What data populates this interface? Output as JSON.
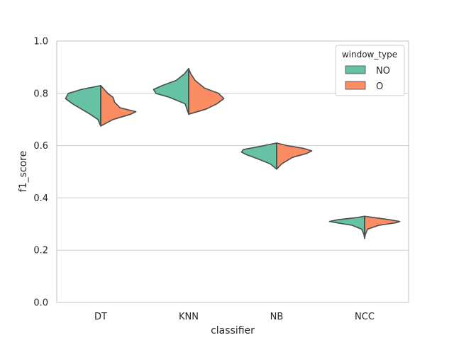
{
  "chart_data": {
    "type": "violin",
    "split": true,
    "xlabel": "classifier",
    "ylabel": "f1_score",
    "ylim": [
      0.0,
      1.0
    ],
    "yticks": [
      "0.0",
      "0.2",
      "0.4",
      "0.6",
      "0.8",
      "1.0"
    ],
    "categories": [
      "DT",
      "KNN",
      "NB",
      "NCC"
    ],
    "grid": "horizontal",
    "legend": {
      "title": "window_type",
      "position": "top-right"
    },
    "series": [
      {
        "name": "NO",
        "color": "#66c2a5",
        "violins": [
          {
            "category": "DT",
            "min": 0.675,
            "max": 0.83,
            "profile": [
              [
                0.675,
                0.0
              ],
              [
                0.7,
                0.08
              ],
              [
                0.72,
                0.3
              ],
              [
                0.74,
                0.55
              ],
              [
                0.76,
                0.8
              ],
              [
                0.78,
                1.0
              ],
              [
                0.8,
                0.92
              ],
              [
                0.815,
                0.55
              ],
              [
                0.83,
                0.0
              ]
            ]
          },
          {
            "category": "KNN",
            "min": 0.72,
            "max": 0.895,
            "profile": [
              [
                0.72,
                0.0
              ],
              [
                0.76,
                0.1
              ],
              [
                0.785,
                0.55
              ],
              [
                0.8,
                0.93
              ],
              [
                0.815,
                1.0
              ],
              [
                0.83,
                0.75
              ],
              [
                0.85,
                0.35
              ],
              [
                0.875,
                0.12
              ],
              [
                0.895,
                0.0
              ]
            ]
          },
          {
            "category": "NB",
            "min": 0.51,
            "max": 0.61,
            "profile": [
              [
                0.51,
                0.0
              ],
              [
                0.53,
                0.18
              ],
              [
                0.55,
                0.55
              ],
              [
                0.565,
                0.85
              ],
              [
                0.575,
                1.0
              ],
              [
                0.585,
                0.95
              ],
              [
                0.595,
                0.55
              ],
              [
                0.61,
                0.0
              ]
            ]
          },
          {
            "category": "NCC",
            "min": 0.245,
            "max": 0.33,
            "profile": [
              [
                0.245,
                0.0
              ],
              [
                0.26,
                0.02
              ],
              [
                0.28,
                0.08
              ],
              [
                0.295,
                0.35
              ],
              [
                0.305,
                0.8
              ],
              [
                0.31,
                1.0
              ],
              [
                0.317,
                0.75
              ],
              [
                0.325,
                0.2
              ],
              [
                0.33,
                0.0
              ]
            ]
          }
        ]
      },
      {
        "name": "O",
        "color": "#fc8d62",
        "violins": [
          {
            "category": "DT",
            "min": 0.675,
            "max": 0.83,
            "profile": [
              [
                0.675,
                0.0
              ],
              [
                0.7,
                0.35
              ],
              [
                0.72,
                0.85
              ],
              [
                0.73,
                1.0
              ],
              [
                0.745,
                0.55
              ],
              [
                0.765,
                0.4
              ],
              [
                0.785,
                0.35
              ],
              [
                0.8,
                0.2
              ],
              [
                0.83,
                0.0
              ]
            ]
          },
          {
            "category": "KNN",
            "min": 0.72,
            "max": 0.895,
            "profile": [
              [
                0.72,
                0.0
              ],
              [
                0.74,
                0.5
              ],
              [
                0.76,
                0.8
              ],
              [
                0.78,
                1.0
              ],
              [
                0.8,
                0.85
              ],
              [
                0.82,
                0.45
              ],
              [
                0.85,
                0.18
              ],
              [
                0.875,
                0.06
              ],
              [
                0.895,
                0.0
              ]
            ]
          },
          {
            "category": "NB",
            "min": 0.51,
            "max": 0.61,
            "profile": [
              [
                0.51,
                0.0
              ],
              [
                0.53,
                0.14
              ],
              [
                0.555,
                0.45
              ],
              [
                0.57,
                0.85
              ],
              [
                0.58,
                1.0
              ],
              [
                0.59,
                0.75
              ],
              [
                0.6,
                0.3
              ],
              [
                0.61,
                0.0
              ]
            ]
          },
          {
            "category": "NCC",
            "min": 0.245,
            "max": 0.33,
            "profile": [
              [
                0.245,
                0.0
              ],
              [
                0.26,
                0.02
              ],
              [
                0.28,
                0.08
              ],
              [
                0.295,
                0.4
              ],
              [
                0.305,
                0.9
              ],
              [
                0.31,
                1.0
              ],
              [
                0.317,
                0.7
              ],
              [
                0.325,
                0.25
              ],
              [
                0.33,
                0.0
              ]
            ]
          }
        ]
      }
    ]
  }
}
